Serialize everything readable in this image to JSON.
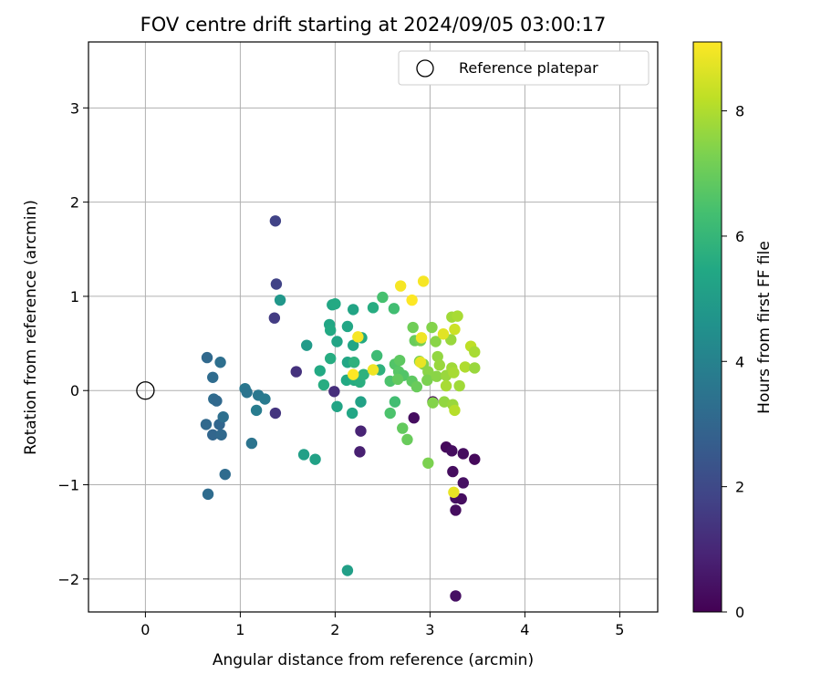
{
  "chart_data": {
    "type": "scatter",
    "title": "FOV centre drift starting at 2024/09/05 03:00:17",
    "xlabel": "Angular distance from reference (arcmin)",
    "ylabel": "Rotation from reference (arcmin)",
    "xlim": [
      -0.6,
      5.4
    ],
    "ylim": [
      -2.35,
      3.7
    ],
    "xticks": [
      0,
      1,
      2,
      3,
      4,
      5
    ],
    "yticks": [
      -2,
      -1,
      0,
      1,
      2,
      3
    ],
    "grid": true,
    "legend": {
      "placement": "top-right",
      "entries": [
        "Reference platepar"
      ]
    },
    "reference_point": {
      "name": "Reference platepar",
      "x": 0,
      "y": 0
    },
    "colorbar": {
      "label": "Hours from first FF file",
      "colormap": "viridis",
      "range": [
        0,
        9.1
      ],
      "ticks": [
        0,
        2,
        4,
        6,
        8
      ]
    },
    "points": [
      {
        "x": 1.37,
        "y": 1.8,
        "h": 1.8
      },
      {
        "x": 1.38,
        "y": 1.13,
        "h": 1.8
      },
      {
        "x": 1.36,
        "y": 0.77,
        "h": 1.6
      },
      {
        "x": 1.37,
        "y": -0.24,
        "h": 1.4
      },
      {
        "x": 1.59,
        "y": 0.2,
        "h": 1.3
      },
      {
        "x": 1.99,
        "y": -0.01,
        "h": 1.2
      },
      {
        "x": 2.27,
        "y": -0.43,
        "h": 0.9
      },
      {
        "x": 2.26,
        "y": -0.65,
        "h": 0.8
      },
      {
        "x": 2.83,
        "y": -0.29,
        "h": 0.3
      },
      {
        "x": 3.03,
        "y": -0.12,
        "h": 0.1
      },
      {
        "x": 3.17,
        "y": -0.6,
        "h": 0.2
      },
      {
        "x": 3.23,
        "y": -0.64,
        "h": 0.3
      },
      {
        "x": 3.35,
        "y": -0.67,
        "h": 0.3
      },
      {
        "x": 3.47,
        "y": -0.73,
        "h": 0.2
      },
      {
        "x": 3.24,
        "y": -0.86,
        "h": 0.3
      },
      {
        "x": 3.35,
        "y": -0.98,
        "h": 0.4
      },
      {
        "x": 3.27,
        "y": -1.14,
        "h": 0.4
      },
      {
        "x": 3.33,
        "y": -1.15,
        "h": 0.3
      },
      {
        "x": 3.27,
        "y": -1.27,
        "h": 0.3
      },
      {
        "x": 3.27,
        "y": -2.18,
        "h": 0.4
      },
      {
        "x": 0.65,
        "y": 0.35,
        "h": 3.1
      },
      {
        "x": 0.79,
        "y": 0.3,
        "h": 3.3
      },
      {
        "x": 0.71,
        "y": 0.14,
        "h": 3.2
      },
      {
        "x": 0.72,
        "y": -0.09,
        "h": 3.2
      },
      {
        "x": 0.75,
        "y": -0.11,
        "h": 3.1
      },
      {
        "x": 0.64,
        "y": -0.36,
        "h": 3.1
      },
      {
        "x": 0.78,
        "y": -0.36,
        "h": 3.0
      },
      {
        "x": 0.82,
        "y": -0.28,
        "h": 3.3
      },
      {
        "x": 0.71,
        "y": -0.47,
        "h": 3.0
      },
      {
        "x": 0.8,
        "y": -0.47,
        "h": 3.1
      },
      {
        "x": 0.84,
        "y": -0.89,
        "h": 3.2
      },
      {
        "x": 0.66,
        "y": -1.1,
        "h": 3.2
      },
      {
        "x": 1.05,
        "y": 0.02,
        "h": 3.6
      },
      {
        "x": 1.07,
        "y": -0.02,
        "h": 3.5
      },
      {
        "x": 1.19,
        "y": -0.05,
        "h": 3.6
      },
      {
        "x": 1.26,
        "y": -0.09,
        "h": 3.7
      },
      {
        "x": 1.17,
        "y": -0.21,
        "h": 3.8
      },
      {
        "x": 1.12,
        "y": -0.56,
        "h": 3.5
      },
      {
        "x": 1.42,
        "y": 0.96,
        "h": 4.8
      },
      {
        "x": 1.7,
        "y": 0.48,
        "h": 4.9
      },
      {
        "x": 1.67,
        "y": -0.68,
        "h": 5.1
      },
      {
        "x": 1.79,
        "y": -0.73,
        "h": 5.2
      },
      {
        "x": 2.13,
        "y": -1.91,
        "h": 5.1
      },
      {
        "x": 1.97,
        "y": 0.91,
        "h": 5.4
      },
      {
        "x": 2.0,
        "y": 0.92,
        "h": 5.5
      },
      {
        "x": 2.19,
        "y": 0.86,
        "h": 5.3
      },
      {
        "x": 2.4,
        "y": 0.88,
        "h": 5.6
      },
      {
        "x": 1.94,
        "y": 0.7,
        "h": 5.4
      },
      {
        "x": 1.95,
        "y": 0.64,
        "h": 5.5
      },
      {
        "x": 2.13,
        "y": 0.68,
        "h": 5.4
      },
      {
        "x": 2.02,
        "y": 0.52,
        "h": 5.3
      },
      {
        "x": 2.19,
        "y": 0.48,
        "h": 5.4
      },
      {
        "x": 2.28,
        "y": 0.56,
        "h": 5.5
      },
      {
        "x": 1.95,
        "y": 0.34,
        "h": 5.6
      },
      {
        "x": 1.84,
        "y": 0.21,
        "h": 5.5
      },
      {
        "x": 2.13,
        "y": 0.3,
        "h": 5.4
      },
      {
        "x": 2.2,
        "y": 0.3,
        "h": 5.8
      },
      {
        "x": 2.12,
        "y": 0.11,
        "h": 5.5
      },
      {
        "x": 2.2,
        "y": 0.11,
        "h": 5.6
      },
      {
        "x": 2.26,
        "y": 0.09,
        "h": 5.7
      },
      {
        "x": 2.3,
        "y": 0.17,
        "h": 5.8
      },
      {
        "x": 1.88,
        "y": 0.06,
        "h": 5.6
      },
      {
        "x": 2.02,
        "y": -0.17,
        "h": 5.3
      },
      {
        "x": 2.18,
        "y": -0.24,
        "h": 5.4
      },
      {
        "x": 2.27,
        "y": -0.12,
        "h": 5.2
      },
      {
        "x": 2.47,
        "y": 0.22,
        "h": 5.8
      },
      {
        "x": 2.44,
        "y": 0.37,
        "h": 6.2
      },
      {
        "x": 2.5,
        "y": 0.99,
        "h": 6.4
      },
      {
        "x": 2.62,
        "y": 0.87,
        "h": 6.3
      },
      {
        "x": 2.58,
        "y": -0.24,
        "h": 6.5
      },
      {
        "x": 2.63,
        "y": -0.12,
        "h": 6.3
      },
      {
        "x": 2.58,
        "y": 0.1,
        "h": 6.5
      },
      {
        "x": 2.63,
        "y": 0.28,
        "h": 6.6
      },
      {
        "x": 2.68,
        "y": 0.32,
        "h": 6.8
      },
      {
        "x": 2.67,
        "y": 0.2,
        "h": 6.7
      },
      {
        "x": 2.72,
        "y": 0.16,
        "h": 6.6
      },
      {
        "x": 2.66,
        "y": 0.12,
        "h": 6.9
      },
      {
        "x": 2.81,
        "y": 0.1,
        "h": 6.8
      },
      {
        "x": 2.86,
        "y": 0.04,
        "h": 7.0
      },
      {
        "x": 2.82,
        "y": 0.67,
        "h": 7.1
      },
      {
        "x": 2.84,
        "y": 0.53,
        "h": 7.0
      },
      {
        "x": 2.9,
        "y": 0.53,
        "h": 7.2
      },
      {
        "x": 2.89,
        "y": 0.31,
        "h": 7.3
      },
      {
        "x": 2.93,
        "y": 0.28,
        "h": 7.4
      },
      {
        "x": 2.98,
        "y": 0.2,
        "h": 7.5
      },
      {
        "x": 2.97,
        "y": 0.11,
        "h": 7.3
      },
      {
        "x": 3.02,
        "y": 0.67,
        "h": 7.4
      },
      {
        "x": 3.06,
        "y": 0.52,
        "h": 7.5
      },
      {
        "x": 3.08,
        "y": 0.36,
        "h": 7.6
      },
      {
        "x": 3.1,
        "y": 0.27,
        "h": 7.7
      },
      {
        "x": 3.07,
        "y": 0.15,
        "h": 7.5
      },
      {
        "x": 3.03,
        "y": -0.13,
        "h": 7.4
      },
      {
        "x": 2.71,
        "y": -0.4,
        "h": 6.9
      },
      {
        "x": 2.76,
        "y": -0.52,
        "h": 7.0
      },
      {
        "x": 2.98,
        "y": -0.77,
        "h": 7.3
      },
      {
        "x": 3.15,
        "y": -0.12,
        "h": 7.6
      },
      {
        "x": 3.17,
        "y": 0.16,
        "h": 7.7
      },
      {
        "x": 3.17,
        "y": 0.05,
        "h": 7.9
      },
      {
        "x": 3.22,
        "y": 0.54,
        "h": 7.7
      },
      {
        "x": 3.23,
        "y": 0.78,
        "h": 7.8
      },
      {
        "x": 3.29,
        "y": 0.79,
        "h": 7.9
      },
      {
        "x": 3.26,
        "y": 0.65,
        "h": 8.4
      },
      {
        "x": 3.23,
        "y": 0.24,
        "h": 7.8
      },
      {
        "x": 3.25,
        "y": 0.19,
        "h": 7.9
      },
      {
        "x": 3.31,
        "y": 0.05,
        "h": 7.8
      },
      {
        "x": 3.24,
        "y": -0.15,
        "h": 7.7
      },
      {
        "x": 3.26,
        "y": -0.21,
        "h": 8.1
      },
      {
        "x": 3.37,
        "y": 0.25,
        "h": 8.0
      },
      {
        "x": 3.43,
        "y": 0.47,
        "h": 8.2
      },
      {
        "x": 3.47,
        "y": 0.41,
        "h": 7.9
      },
      {
        "x": 3.47,
        "y": 0.24,
        "h": 7.7
      },
      {
        "x": 3.25,
        "y": -1.08,
        "h": 8.8
      },
      {
        "x": 2.69,
        "y": 1.11,
        "h": 9.0
      },
      {
        "x": 2.93,
        "y": 1.16,
        "h": 9.0
      },
      {
        "x": 2.81,
        "y": 0.96,
        "h": 9.1
      },
      {
        "x": 2.24,
        "y": 0.57,
        "h": 9.0
      },
      {
        "x": 2.19,
        "y": 0.17,
        "h": 9.1
      },
      {
        "x": 2.4,
        "y": 0.22,
        "h": 8.9
      },
      {
        "x": 2.91,
        "y": 0.56,
        "h": 8.9
      },
      {
        "x": 3.14,
        "y": 0.6,
        "h": 8.7
      },
      {
        "x": 2.9,
        "y": 0.3,
        "h": 8.8
      }
    ]
  }
}
